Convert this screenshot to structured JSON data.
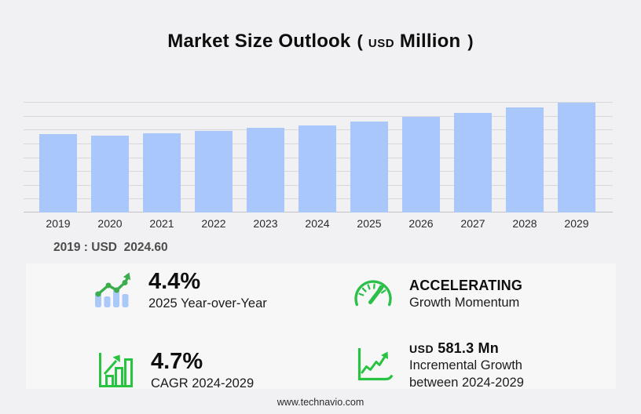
{
  "title": {
    "main": "Market Size Outlook",
    "paren_open": "(",
    "unit_small": "USD",
    "unit_big": "Million",
    "paren_close": ")"
  },
  "annotation": "2019 : USD  2024.60",
  "chart_data": {
    "type": "bar",
    "title": "Market Size Outlook (USD Million)",
    "xlabel": "",
    "ylabel": "",
    "categories": [
      "2019",
      "2020",
      "2021",
      "2022",
      "2023",
      "2024",
      "2025",
      "2026",
      "2027",
      "2028",
      "2029"
    ],
    "values": [
      2024.6,
      1980,
      2035,
      2095,
      2175,
      2252.2,
      2351.3,
      2460,
      2575,
      2700,
      2833.5
    ],
    "value_note": "2019 labeled on chart as USD 2024.60; remaining values estimated from bar heights consistent with 4.4% YoY 2025, 4.7% CAGR 2024-2029 and USD 581.3 Mn incremental growth 2024-2029",
    "ylim": [
      0,
      2850
    ],
    "grid": true,
    "gridline_count": 9,
    "legend": "none",
    "bar_color": "#a9c7fb"
  },
  "stats": [
    {
      "id": "yoy",
      "icon": "trend-bars-up-icon",
      "value": "4.4%",
      "label": "2025 Year-over-Year"
    },
    {
      "id": "momentum",
      "icon": "gauge-icon",
      "value": "ACCELERATING",
      "label": "Growth Momentum"
    },
    {
      "id": "cagr",
      "icon": "bar-growth-icon",
      "value": "4.7%",
      "label": "CAGR 2024-2029"
    },
    {
      "id": "incremental",
      "icon": "line-growth-icon",
      "value_prefix": "USD",
      "value": "581.3 Mn",
      "label": "Incremental Growth",
      "label2": "between 2024-2029"
    }
  ],
  "footer": "www.technavio.com",
  "colors": {
    "background": "#f1f1f3",
    "panel": "#f7f7f8",
    "bar_fill": "#a9c7fb",
    "icon_green": "#2cc04a",
    "line_green": "#3bad4c",
    "gridline": "#d8d8da",
    "axis_line": "#c2c2c5",
    "title_text": "#0d0d0d",
    "annotation_text": "#4d4d4d"
  }
}
